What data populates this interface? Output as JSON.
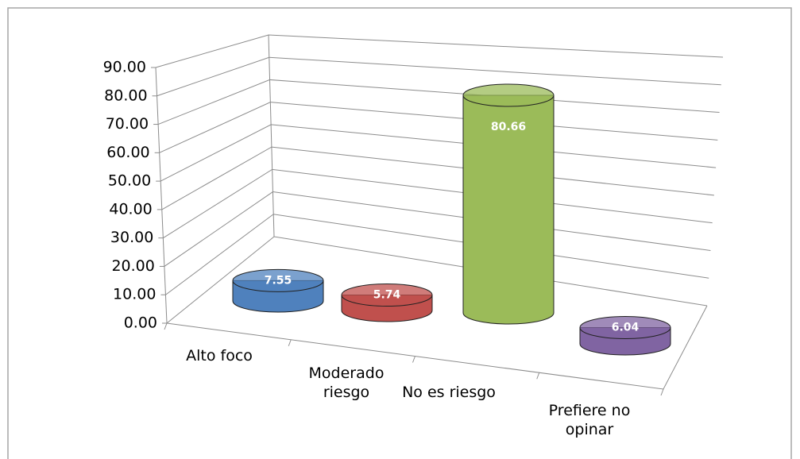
{
  "chart_data": {
    "type": "bar3d",
    "categories": [
      "Alto foco",
      "Moderado riesgo",
      "No es riesgo",
      "Prefiere no opinar"
    ],
    "values": [
      7.55,
      5.74,
      80.66,
      6.04
    ],
    "colors": [
      "#4f81bd",
      "#c0504d",
      "#9bbb59",
      "#8064a2"
    ],
    "ylim": [
      0,
      90
    ],
    "yticks": [
      {
        "value": 0,
        "label": "0.00"
      },
      {
        "value": 10,
        "label": "10.00"
      },
      {
        "value": 20,
        "label": "20.00"
      },
      {
        "value": 30,
        "label": "30.00"
      },
      {
        "value": 40,
        "label": "40.00"
      },
      {
        "value": 50,
        "label": "50.00"
      },
      {
        "value": 60,
        "label": "60.00"
      },
      {
        "value": 70,
        "label": "70.00"
      },
      {
        "value": 80,
        "label": "80.00"
      },
      {
        "value": 90,
        "label": "90.00"
      }
    ],
    "grid": true
  }
}
